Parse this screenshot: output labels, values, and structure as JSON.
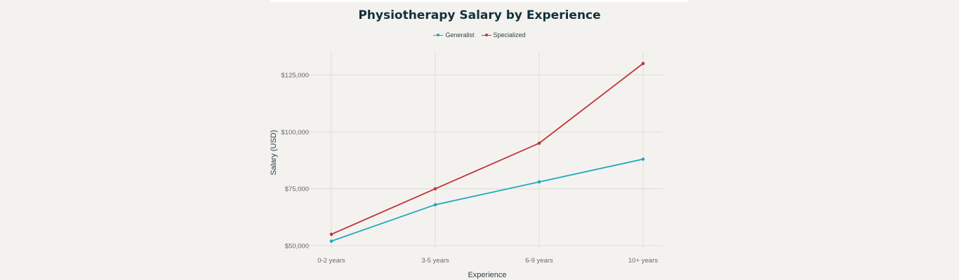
{
  "chart_data": {
    "type": "line",
    "title": "Physiotherapy Salary by Experience",
    "xlabel": "Experience",
    "ylabel": "Salary (USD)",
    "categories": [
      "0-2 years",
      "3-5 years",
      "6-9 years",
      "10+ years"
    ],
    "series": [
      {
        "name": "Generalist",
        "color": "#1ea8bd",
        "values": [
          52000,
          68000,
          78000,
          88000
        ]
      },
      {
        "name": "Specialized",
        "color": "#c0333b",
        "values": [
          55000,
          75000,
          95000,
          130000
        ]
      }
    ],
    "yticks": [
      50000,
      75000,
      100000,
      125000
    ],
    "ytick_labels": [
      "$50,000",
      "$75,000",
      "$100,000",
      "$125,000"
    ],
    "ylim": [
      50000,
      135000
    ],
    "grid": true,
    "legend_position": "top-center"
  }
}
